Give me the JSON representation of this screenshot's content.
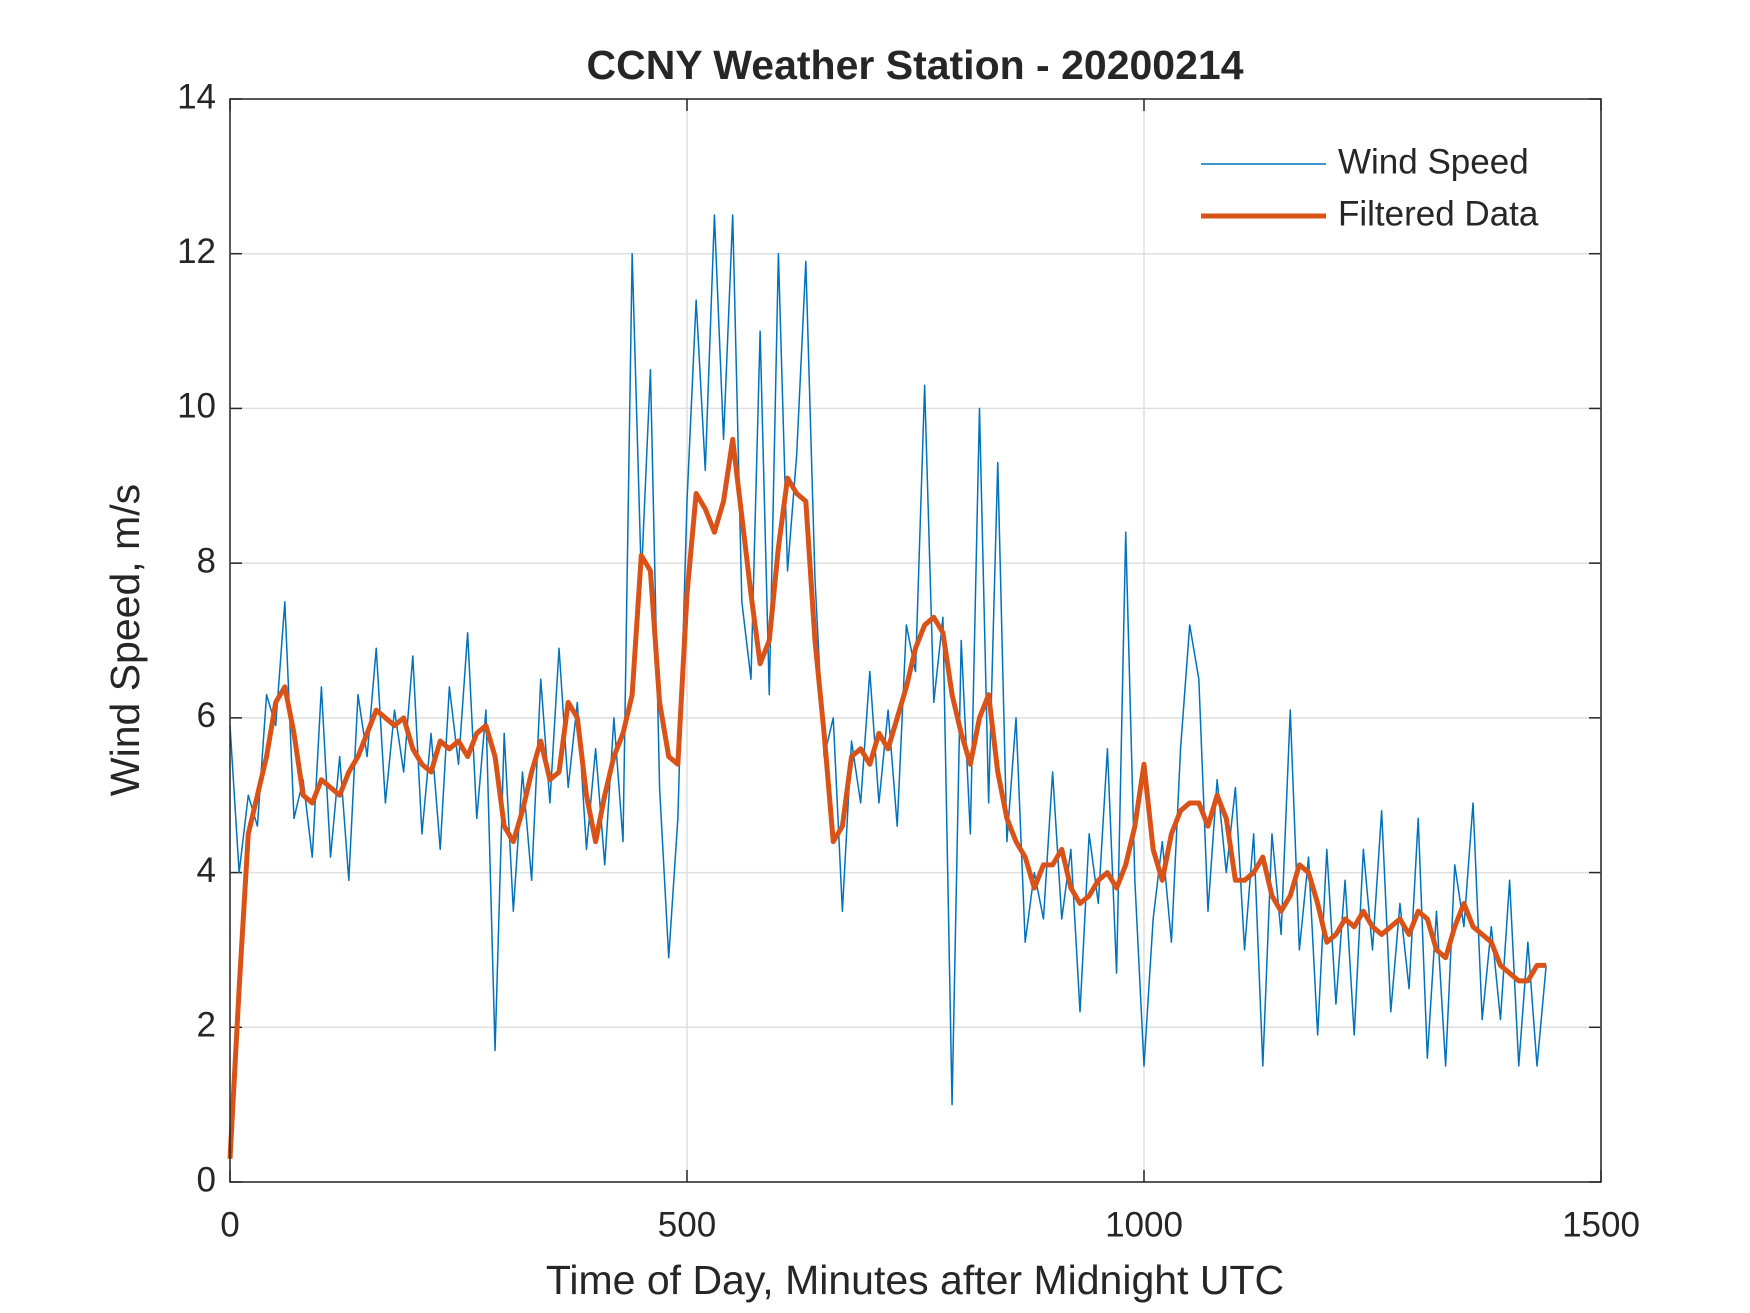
{
  "chart_data": {
    "type": "line",
    "title": "CCNY Weather Station - 20200214",
    "xlabel": "Time of Day, Minutes after Midnight UTC",
    "ylabel": "Wind Speed, m/s",
    "xlim": [
      0,
      1500
    ],
    "xticks": [
      0,
      500,
      1000,
      1500
    ],
    "ylim": [
      0,
      14
    ],
    "yticks": [
      0,
      2,
      4,
      6,
      8,
      10,
      12,
      14
    ],
    "grid": true,
    "legend": "upper-right",
    "x": [
      0,
      10,
      20,
      30,
      40,
      50,
      60,
      70,
      80,
      90,
      100,
      110,
      120,
      130,
      140,
      150,
      160,
      170,
      180,
      190,
      200,
      210,
      220,
      230,
      240,
      250,
      260,
      270,
      280,
      290,
      300,
      310,
      320,
      330,
      340,
      350,
      360,
      370,
      380,
      390,
      400,
      410,
      420,
      430,
      440,
      450,
      460,
      470,
      480,
      490,
      500,
      510,
      520,
      530,
      540,
      550,
      560,
      570,
      580,
      590,
      600,
      610,
      620,
      630,
      640,
      650,
      660,
      670,
      680,
      690,
      700,
      710,
      720,
      730,
      740,
      750,
      760,
      770,
      780,
      790,
      800,
      810,
      820,
      830,
      840,
      850,
      860,
      870,
      880,
      890,
      900,
      910,
      920,
      930,
      940,
      950,
      960,
      970,
      980,
      990,
      1000,
      1010,
      1020,
      1030,
      1040,
      1050,
      1060,
      1070,
      1080,
      1090,
      1100,
      1110,
      1120,
      1130,
      1140,
      1150,
      1160,
      1170,
      1180,
      1190,
      1200,
      1210,
      1220,
      1230,
      1240,
      1250,
      1260,
      1270,
      1280,
      1290,
      1300,
      1310,
      1320,
      1330,
      1340,
      1350,
      1360,
      1370,
      1380,
      1390,
      1400,
      1410,
      1420,
      1430,
      1440
    ],
    "series": [
      {
        "name": "Wind Speed",
        "color": "#0072bd",
        "width": 1.5,
        "values": [
          5.9,
          4.0,
          5.0,
          4.6,
          6.3,
          5.9,
          7.5,
          4.7,
          5.2,
          4.2,
          6.4,
          4.2,
          5.5,
          3.9,
          6.3,
          5.5,
          6.9,
          4.9,
          6.1,
          5.3,
          6.8,
          4.5,
          5.8,
          4.3,
          6.4,
          5.4,
          7.1,
          4.7,
          6.1,
          1.7,
          5.8,
          3.5,
          5.3,
          3.9,
          6.5,
          4.9,
          6.9,
          5.1,
          6.2,
          4.3,
          5.6,
          4.1,
          6.0,
          4.4,
          12.0,
          7.8,
          10.5,
          5.1,
          2.9,
          4.7,
          8.8,
          11.4,
          9.2,
          12.5,
          9.6,
          12.5,
          7.5,
          6.5,
          11.0,
          6.3,
          12.0,
          7.9,
          9.4,
          11.9,
          7.8,
          5.5,
          6.0,
          3.5,
          5.7,
          4.9,
          6.6,
          4.9,
          6.1,
          4.6,
          7.2,
          6.6,
          10.3,
          6.2,
          7.3,
          1.0,
          7.0,
          4.5,
          10.0,
          4.9,
          9.3,
          4.4,
          6.0,
          3.1,
          4.0,
          3.4,
          5.3,
          3.4,
          4.3,
          2.2,
          4.5,
          3.6,
          5.6,
          2.7,
          8.4,
          3.9,
          1.5,
          3.4,
          4.4,
          3.1,
          5.6,
          7.2,
          6.5,
          3.5,
          5.2,
          4.0,
          5.1,
          3.0,
          4.5,
          1.5,
          4.5,
          3.2,
          6.1,
          3.0,
          4.2,
          1.9,
          4.3,
          2.3,
          3.9,
          1.9,
          4.3,
          3.0,
          4.8,
          2.2,
          3.6,
          2.5,
          4.7,
          1.6,
          3.5,
          1.5,
          4.1,
          3.3,
          4.9,
          2.1,
          3.3,
          2.1,
          3.9,
          1.5,
          3.1,
          1.5,
          2.8
        ]
      },
      {
        "name": "Filtered Data",
        "color": "#d95319",
        "width": 5,
        "values": [
          0.3,
          2.5,
          4.5,
          5.0,
          5.5,
          6.2,
          6.4,
          5.8,
          5.0,
          4.9,
          5.2,
          5.1,
          5.0,
          5.3,
          5.5,
          5.8,
          6.1,
          6.0,
          5.9,
          6.0,
          5.6,
          5.4,
          5.3,
          5.7,
          5.6,
          5.7,
          5.5,
          5.8,
          5.9,
          5.5,
          4.6,
          4.4,
          4.8,
          5.3,
          5.7,
          5.2,
          5.3,
          6.2,
          6.0,
          5.0,
          4.4,
          5.0,
          5.5,
          5.8,
          6.3,
          8.1,
          7.9,
          6.2,
          5.5,
          5.4,
          7.6,
          8.9,
          8.7,
          8.4,
          8.8,
          9.6,
          8.6,
          7.6,
          6.7,
          7.0,
          8.2,
          9.1,
          8.9,
          8.8,
          7.0,
          5.8,
          4.4,
          4.6,
          5.5,
          5.6,
          5.4,
          5.8,
          5.6,
          6.0,
          6.4,
          6.9,
          7.2,
          7.3,
          7.1,
          6.3,
          5.8,
          5.4,
          6.0,
          6.3,
          5.3,
          4.7,
          4.4,
          4.2,
          3.8,
          4.1,
          4.1,
          4.3,
          3.8,
          3.6,
          3.7,
          3.9,
          4.0,
          3.8,
          4.1,
          4.6,
          5.4,
          4.3,
          3.9,
          4.5,
          4.8,
          4.9,
          4.9,
          4.6,
          5.0,
          4.7,
          3.9,
          3.9,
          4.0,
          4.2,
          3.7,
          3.5,
          3.7,
          4.1,
          4.0,
          3.6,
          3.1,
          3.2,
          3.4,
          3.3,
          3.5,
          3.3,
          3.2,
          3.3,
          3.4,
          3.2,
          3.5,
          3.4,
          3.0,
          2.9,
          3.3,
          3.6,
          3.3,
          3.2,
          3.1,
          2.8,
          2.7,
          2.6,
          2.6,
          2.8,
          2.8
        ]
      }
    ]
  }
}
